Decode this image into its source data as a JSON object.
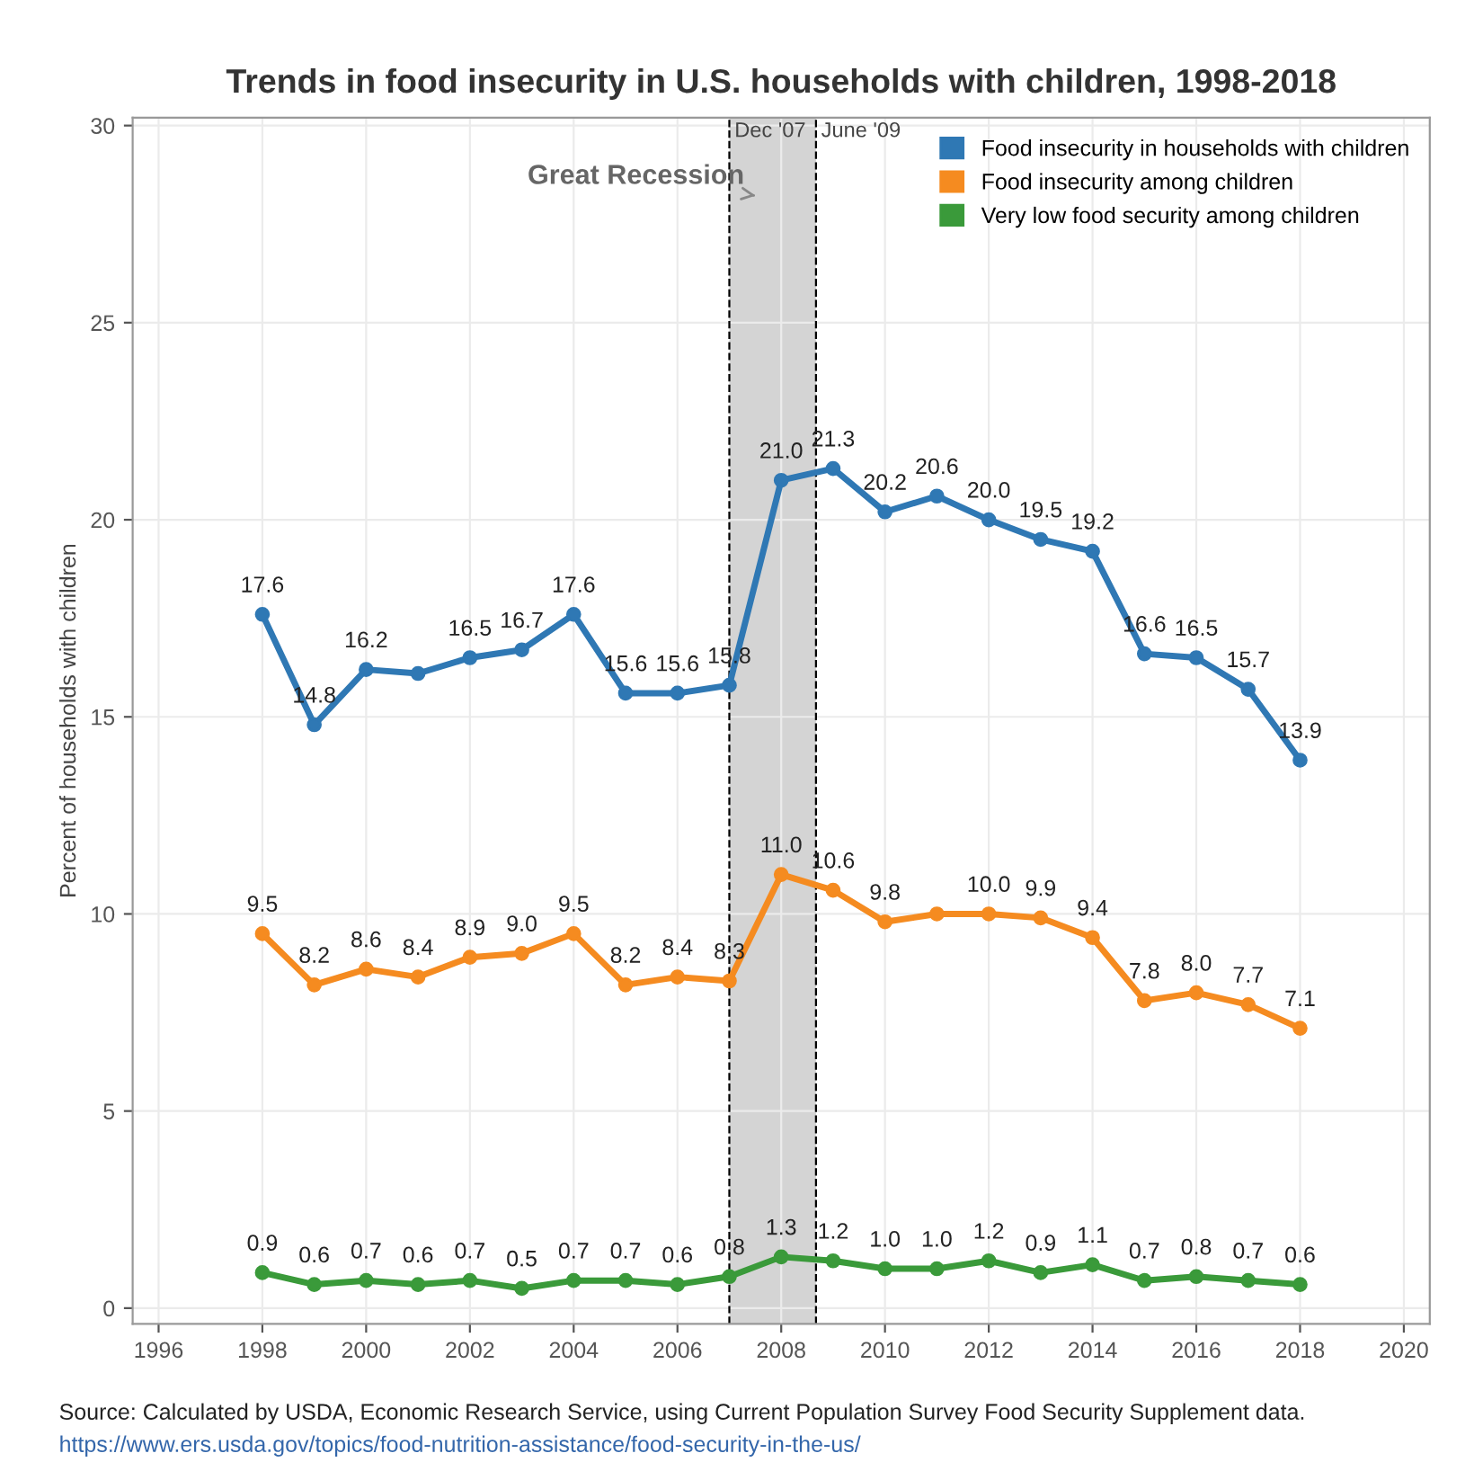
{
  "chart_data": {
    "type": "line",
    "title": "Trends in food insecurity in U.S. households with children, 1998-2018",
    "ylabel": "Percent of households with children",
    "x": [
      1998,
      1999,
      2000,
      2001,
      2002,
      2003,
      2004,
      2005,
      2006,
      2007,
      2008,
      2009,
      2010,
      2011,
      2012,
      2013,
      2014,
      2015,
      2016,
      2017,
      2018
    ],
    "series": [
      {
        "name": "Food insecurity in households with children",
        "color": "#2f78b4",
        "values": [
          17.6,
          14.8,
          16.2,
          16.1,
          16.5,
          16.7,
          17.6,
          15.6,
          15.6,
          15.8,
          21.0,
          21.3,
          20.2,
          20.6,
          20.0,
          19.5,
          19.2,
          16.6,
          16.5,
          15.7,
          13.9
        ],
        "value_labels": [
          "17.6",
          "14.8",
          "16.2",
          null,
          "16.5",
          "16.7",
          "17.6",
          "15.6",
          "15.6",
          "15.8",
          "21.0",
          "21.3",
          "20.2",
          "20.6",
          "20.0",
          "19.5",
          "19.2",
          "16.6",
          "16.5",
          "15.7",
          "13.9"
        ]
      },
      {
        "name": "Food insecurity among children",
        "color": "#f58b20",
        "values": [
          9.5,
          8.2,
          8.6,
          8.4,
          8.9,
          9.0,
          9.5,
          8.2,
          8.4,
          8.3,
          11.0,
          10.6,
          9.8,
          10.0,
          10.0,
          9.9,
          9.4,
          7.8,
          8.0,
          7.7,
          7.1
        ],
        "value_labels": [
          "9.5",
          "8.2",
          "8.6",
          "8.4",
          "8.9",
          "9.0",
          "9.5",
          "8.2",
          "8.4",
          "8.3",
          "11.0",
          "10.6",
          "9.8",
          null,
          "10.0",
          "9.9",
          "9.4",
          "7.8",
          "8.0",
          "7.7",
          "7.1"
        ]
      },
      {
        "name": "Very low food security among children",
        "color": "#3a9a3a",
        "values": [
          0.9,
          0.6,
          0.7,
          0.6,
          0.7,
          0.5,
          0.7,
          0.7,
          0.6,
          0.8,
          1.3,
          1.2,
          1.0,
          1.0,
          1.2,
          0.9,
          1.1,
          0.7,
          0.8,
          0.7,
          0.6
        ],
        "value_labels": [
          "0.9",
          "0.6",
          "0.7",
          "0.6",
          "0.7",
          "0.5",
          "0.7",
          "0.7",
          "0.6",
          "0.8",
          "1.3",
          "1.2",
          "1.0",
          "1.0",
          "1.2",
          "0.9",
          "1.1",
          "0.7",
          "0.8",
          "0.7",
          "0.6"
        ]
      }
    ],
    "xlim": [
      1995.5,
      2020.5
    ],
    "xticks": [
      1996,
      1998,
      2000,
      2002,
      2004,
      2006,
      2008,
      2010,
      2012,
      2014,
      2016,
      2018,
      2020
    ],
    "ylim": [
      -0.4,
      30.2
    ],
    "yticks": [
      0,
      5,
      10,
      15,
      20,
      25,
      30
    ],
    "bands": [
      {
        "axis": "x",
        "from": 2007,
        "to": 2008.67,
        "label": "Great Recession",
        "color": "#d4d4d4"
      }
    ],
    "ref_lines": [
      {
        "axis": "x",
        "value": 2007,
        "label": "Dec '07",
        "line_style": "dashed"
      },
      {
        "axis": "x",
        "value": 2008.67,
        "label": "June '09",
        "line_style": "dashed"
      }
    ],
    "annotations": [
      "Source: Calculated by USDA, Economic Research Service, using Current Population Survey Food Security Supplement data.",
      "https://www.ers.usda.gov/topics/food-nutrition-assistance/food-security-in-the-us/"
    ],
    "grid": true,
    "legend": "top right",
    "marker": "circle",
    "line_style": "solid"
  }
}
